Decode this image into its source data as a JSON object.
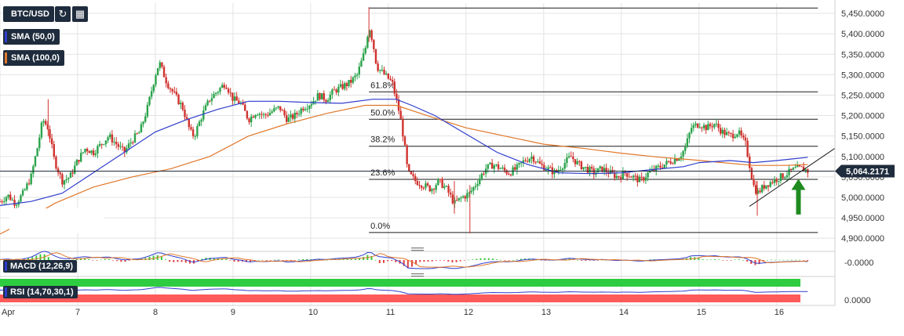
{
  "chart_data": {
    "type": "candlestick",
    "symbol": "BTC/USD",
    "price_axis": {
      "ticks": [
        "5,450.0000",
        "5,400.0000",
        "5,350.0000",
        "5,300.0000",
        "5,250.0000",
        "5,200.0000",
        "5,150.0000",
        "5,100.0000",
        "5,050.0000",
        "5,000.0000",
        "4,950.0000",
        "4,900.0000"
      ],
      "tick_values": [
        5450,
        5400,
        5350,
        5300,
        5250,
        5200,
        5150,
        5100,
        5050,
        5000,
        4950,
        4900
      ],
      "ylim": [
        4885,
        5475
      ],
      "current_price": "5,064.2171",
      "current_price_value": 5064.2171
    },
    "time_axis": {
      "labels": [
        "Apr",
        "7",
        "8",
        "9",
        "10",
        "11",
        "12",
        "13",
        "14",
        "15",
        "16"
      ],
      "day_index": [
        0,
        1,
        2,
        3,
        4,
        5,
        6,
        7,
        8,
        9,
        10
      ],
      "xlim": [
        0,
        10.75
      ]
    },
    "indicators": [
      {
        "name": "SMA (50,0)",
        "color": "#2e3dcc"
      },
      {
        "name": "SMA (100,0)",
        "color": "#e0772a"
      }
    ],
    "fibonacci": {
      "levels": [
        {
          "label": "61.8%",
          "price": 5258
        },
        {
          "label": "50.0%",
          "price": 5191
        },
        {
          "label": "38.2%",
          "price": 5125
        },
        {
          "label": "23.6%",
          "price": 5044
        },
        {
          "label": "0.0%",
          "price": 4914
        }
      ],
      "high_price": 5463,
      "start_day": 4.75,
      "end_day": 10.53
    },
    "trendline": {
      "from": [
        9.65,
        4978
      ],
      "to": [
        10.75,
        5120
      ]
    },
    "arrow": {
      "at_day": 10.28,
      "from_price": 4958,
      "to_price": 5045,
      "color": "#1f8a1f"
    },
    "price_path": [
      [
        0.0,
        4990
      ],
      [
        0.1,
        5005
      ],
      [
        0.2,
        4985
      ],
      [
        0.3,
        5010
      ],
      [
        0.4,
        5050
      ],
      [
        0.48,
        5120
      ],
      [
        0.55,
        5190
      ],
      [
        0.62,
        5170
      ],
      [
        0.7,
        5090
      ],
      [
        0.8,
        5040
      ],
      [
        0.9,
        5050
      ],
      [
        1.0,
        5090
      ],
      [
        1.1,
        5120
      ],
      [
        1.2,
        5110
      ],
      [
        1.3,
        5130
      ],
      [
        1.4,
        5150
      ],
      [
        1.5,
        5130
      ],
      [
        1.6,
        5110
      ],
      [
        1.7,
        5140
      ],
      [
        1.8,
        5160
      ],
      [
        1.9,
        5220
      ],
      [
        2.0,
        5300
      ],
      [
        2.05,
        5330
      ],
      [
        2.15,
        5280
      ],
      [
        2.25,
        5250
      ],
      [
        2.35,
        5220
      ],
      [
        2.45,
        5160
      ],
      [
        2.5,
        5150
      ],
      [
        2.6,
        5200
      ],
      [
        2.7,
        5240
      ],
      [
        2.8,
        5260
      ],
      [
        2.9,
        5280
      ],
      [
        3.0,
        5240
      ],
      [
        3.1,
        5230
      ],
      [
        3.2,
        5190
      ],
      [
        3.3,
        5210
      ],
      [
        3.4,
        5200
      ],
      [
        3.5,
        5210
      ],
      [
        3.6,
        5220
      ],
      [
        3.7,
        5190
      ],
      [
        3.8,
        5200
      ],
      [
        3.9,
        5220
      ],
      [
        4.0,
        5230
      ],
      [
        4.1,
        5250
      ],
      [
        4.2,
        5240
      ],
      [
        4.3,
        5260
      ],
      [
        4.4,
        5270
      ],
      [
        4.5,
        5280
      ],
      [
        4.6,
        5300
      ],
      [
        4.7,
        5360
      ],
      [
        4.75,
        5420
      ],
      [
        4.8,
        5380
      ],
      [
        4.85,
        5320
      ],
      [
        4.95,
        5300
      ],
      [
        5.05,
        5280
      ],
      [
        5.1,
        5240
      ],
      [
        5.15,
        5200
      ],
      [
        5.2,
        5140
      ],
      [
        5.25,
        5060
      ],
      [
        5.35,
        5040
      ],
      [
        5.45,
        5030
      ],
      [
        5.55,
        5020
      ],
      [
        5.65,
        5040
      ],
      [
        5.75,
        5020
      ],
      [
        5.85,
        4985
      ],
      [
        5.95,
        5000
      ],
      [
        6.05,
        5010
      ],
      [
        6.15,
        5040
      ],
      [
        6.25,
        5070
      ],
      [
        6.35,
        5080
      ],
      [
        6.45,
        5070
      ],
      [
        6.55,
        5060
      ],
      [
        6.65,
        5070
      ],
      [
        6.75,
        5090
      ],
      [
        6.85,
        5100
      ],
      [
        6.95,
        5080
      ],
      [
        7.05,
        5070
      ],
      [
        7.15,
        5060
      ],
      [
        7.25,
        5080
      ],
      [
        7.35,
        5100
      ],
      [
        7.45,
        5080
      ],
      [
        7.55,
        5070
      ],
      [
        7.65,
        5060
      ],
      [
        7.75,
        5070
      ],
      [
        7.85,
        5060
      ],
      [
        7.95,
        5050
      ],
      [
        8.05,
        5060
      ],
      [
        8.15,
        5050
      ],
      [
        8.25,
        5040
      ],
      [
        8.35,
        5060
      ],
      [
        8.45,
        5070
      ],
      [
        8.55,
        5080
      ],
      [
        8.65,
        5090
      ],
      [
        8.75,
        5100
      ],
      [
        8.82,
        5120
      ],
      [
        8.9,
        5170
      ],
      [
        9.0,
        5180
      ],
      [
        9.1,
        5170
      ],
      [
        9.2,
        5180
      ],
      [
        9.3,
        5160
      ],
      [
        9.4,
        5150
      ],
      [
        9.5,
        5160
      ],
      [
        9.6,
        5130
      ],
      [
        9.65,
        5080
      ],
      [
        9.7,
        5030
      ],
      [
        9.75,
        5010
      ],
      [
        9.85,
        5030
      ],
      [
        9.95,
        5040
      ],
      [
        10.05,
        5050
      ],
      [
        10.15,
        5060
      ],
      [
        10.25,
        5070
      ],
      [
        10.35,
        5070
      ],
      [
        10.4,
        5064
      ]
    ],
    "sma50_path": [
      [
        0.0,
        4980
      ],
      [
        0.4,
        4990
      ],
      [
        0.8,
        5010
      ],
      [
        1.2,
        5060
      ],
      [
        1.6,
        5110
      ],
      [
        2.0,
        5160
      ],
      [
        2.4,
        5190
      ],
      [
        2.8,
        5215
      ],
      [
        3.2,
        5235
      ],
      [
        3.6,
        5235
      ],
      [
        4.0,
        5232
      ],
      [
        4.4,
        5230
      ],
      [
        4.8,
        5240
      ],
      [
        5.1,
        5240
      ],
      [
        5.3,
        5225
      ],
      [
        5.6,
        5200
      ],
      [
        6.0,
        5155
      ],
      [
        6.4,
        5110
      ],
      [
        6.8,
        5080
      ],
      [
        7.2,
        5060
      ],
      [
        7.6,
        5058
      ],
      [
        8.0,
        5060
      ],
      [
        8.4,
        5068
      ],
      [
        8.8,
        5075
      ],
      [
        9.0,
        5085
      ],
      [
        9.4,
        5090
      ],
      [
        9.7,
        5085
      ],
      [
        10.0,
        5090
      ],
      [
        10.4,
        5098
      ]
    ],
    "sma100_path": [
      [
        0.0,
        4910
      ],
      [
        0.3,
        4940
      ],
      [
        0.7,
        4985
      ],
      [
        1.2,
        5025
      ],
      [
        1.7,
        5050
      ],
      [
        2.2,
        5070
      ],
      [
        2.7,
        5100
      ],
      [
        3.2,
        5150
      ],
      [
        3.7,
        5180
      ],
      [
        4.2,
        5205
      ],
      [
        4.7,
        5225
      ],
      [
        5.1,
        5225
      ],
      [
        5.5,
        5200
      ],
      [
        6.0,
        5170
      ],
      [
        6.5,
        5150
      ],
      [
        7.0,
        5130
      ],
      [
        7.5,
        5120
      ],
      [
        8.0,
        5108
      ],
      [
        8.5,
        5098
      ],
      [
        8.9,
        5092
      ],
      [
        9.3,
        5085
      ],
      [
        9.7,
        5078
      ],
      [
        10.1,
        5078
      ],
      [
        10.4,
        5080
      ]
    ]
  },
  "toolbar": {
    "symbol_label": "BTC/USD",
    "sma50_label": "SMA (50,0)",
    "sma100_label": "SMA (100,0)",
    "sma50_color": "#2e3dcc",
    "sma100_color": "#e0772a",
    "reload_icon": "reload-icon",
    "calendar_icon": "calendar-icon"
  },
  "macd": {
    "label": "MACD (12,26,9)",
    "axis_value": "-0.0000",
    "macd_color": "#2e3dcc",
    "signal_color": "#e0772a"
  },
  "rsi": {
    "label": "RSI (14,70,30,1)",
    "axis_value": "0.0000",
    "overbought_color": "#2ecc40",
    "oversold_color": "#ff5a5a"
  },
  "colors": {
    "up_candle": "#2aa34a",
    "down_candle": "#d0322e",
    "current_price_tag": "#1f2c3d",
    "grid": "#e3e3e3"
  }
}
